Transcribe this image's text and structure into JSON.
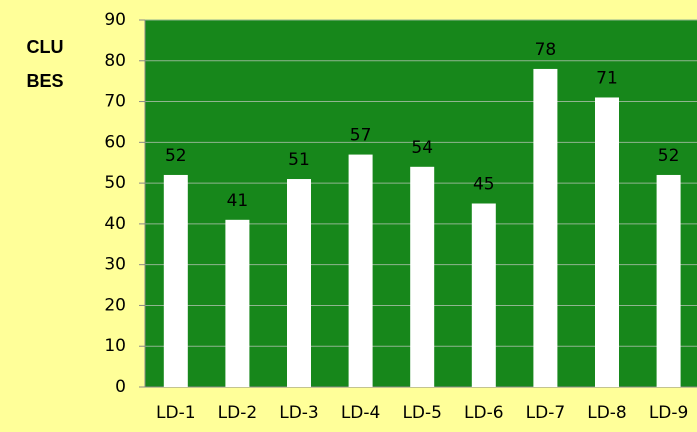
{
  "chart_data": {
    "type": "bar",
    "ylabel": [
      "CLU",
      "BES"
    ],
    "categories": [
      "LD-1",
      "LD-2",
      "LD-3",
      "LD-4",
      "LD-5",
      "LD-6",
      "LD-7",
      "LD-8",
      "LD-9"
    ],
    "values": [
      52,
      41,
      51,
      57,
      54,
      45,
      78,
      71,
      52
    ],
    "color": "#ffffff",
    "plot_background": "#17871b",
    "background": "#ffff99",
    "ylim": [
      0,
      90
    ],
    "yticks": [
      0,
      10,
      20,
      30,
      40,
      50,
      60,
      70,
      80,
      90
    ],
    "grid": true
  }
}
